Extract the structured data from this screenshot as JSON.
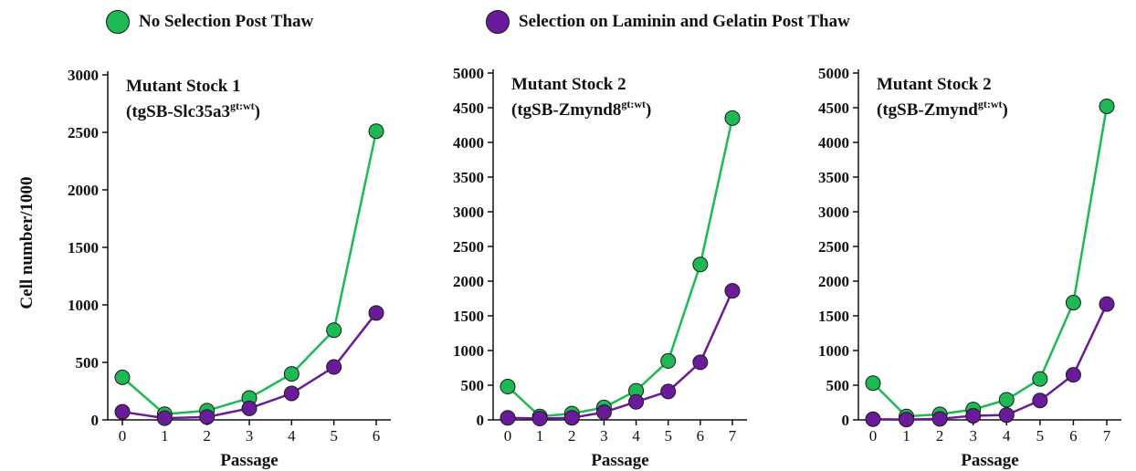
{
  "legend": {
    "green_label": "No Selection Post Thaw",
    "purple_label": "Selection on Laminin and Gelatin Post Thaw"
  },
  "ylabel": "Cell number/1000",
  "colors": {
    "green": "#1db954",
    "purple": "#6a1b9a"
  },
  "chart_data": [
    {
      "type": "line",
      "title": "Mutant Stock 1",
      "subtitle": "(tgSB-Slc35a3",
      "subtitle_sup": "gt:wt",
      "subtitle_end": ")",
      "xlabel": "Passage",
      "ylabel": "Cell number/1000",
      "x": [
        0,
        1,
        2,
        3,
        4,
        5,
        6
      ],
      "ylim": [
        0,
        3000
      ],
      "yticks": [
        0,
        500,
        1000,
        1500,
        2000,
        2500,
        3000
      ],
      "series": [
        {
          "name": "No Selection Post Thaw",
          "color": "green",
          "values": [
            370,
            50,
            80,
            190,
            400,
            780,
            2510
          ]
        },
        {
          "name": "Selection on Laminin and Gelatin Post Thaw",
          "color": "purple",
          "values": [
            70,
            15,
            25,
            100,
            230,
            460,
            930
          ]
        }
      ]
    },
    {
      "type": "line",
      "title": "Mutant Stock 2",
      "subtitle": "(tgSB-Zmynd8",
      "subtitle_sup": "gt:wt",
      "subtitle_end": ")",
      "xlabel": "Passage",
      "ylabel": "",
      "x": [
        0,
        1,
        2,
        3,
        4,
        5,
        6,
        7
      ],
      "ylim": [
        0,
        5000
      ],
      "yticks": [
        0,
        500,
        1000,
        1500,
        2000,
        2500,
        3000,
        3500,
        4000,
        4500,
        5000
      ],
      "series": [
        {
          "name": "No Selection Post Thaw",
          "color": "green",
          "values": [
            480,
            50,
            90,
            180,
            420,
            850,
            2240,
            4350
          ]
        },
        {
          "name": "Selection on Laminin and Gelatin Post Thaw",
          "color": "purple",
          "values": [
            30,
            20,
            30,
            110,
            260,
            410,
            830,
            1860
          ]
        }
      ]
    },
    {
      "type": "line",
      "title": "Mutant Stock 2",
      "subtitle": "(tgSB-Zmynd",
      "subtitle_sup": "gt:wt",
      "subtitle_end": ")",
      "xlabel": "Passage",
      "ylabel": "",
      "x": [
        0,
        1,
        2,
        3,
        4,
        5,
        6,
        7
      ],
      "ylim": [
        0,
        5000
      ],
      "yticks": [
        0,
        500,
        1000,
        1500,
        2000,
        2500,
        3000,
        3500,
        4000,
        4500,
        5000
      ],
      "series": [
        {
          "name": "No Selection Post Thaw",
          "color": "green",
          "values": [
            530,
            50,
            80,
            150,
            290,
            590,
            1690,
            4520
          ]
        },
        {
          "name": "Selection on Laminin and Gelatin Post Thaw",
          "color": "purple",
          "values": [
            10,
            5,
            15,
            60,
            70,
            280,
            650,
            1670
          ]
        }
      ]
    }
  ]
}
